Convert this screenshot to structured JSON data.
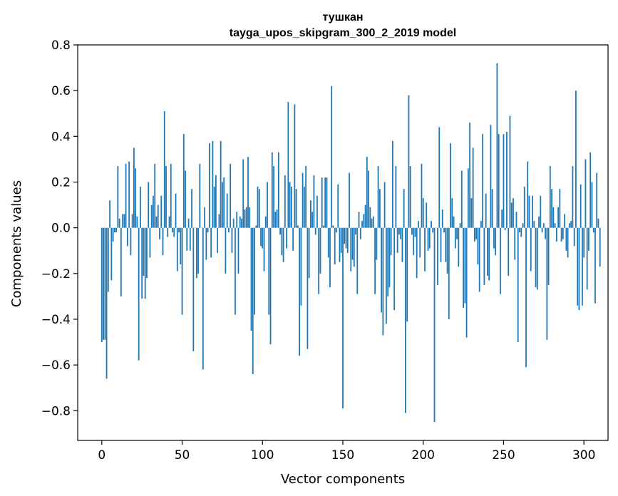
{
  "chart_data": {
    "type": "bar",
    "title_line1": "тушкан",
    "title_line2": "tayga_upos_skipgram_300_2_2019 model",
    "xlabel": "Vector components",
    "ylabel": "Components values",
    "xlim": [
      -15,
      315
    ],
    "ylim": [
      -0.93,
      0.8
    ],
    "xticks": [
      0,
      50,
      100,
      150,
      200,
      250,
      300
    ],
    "xtick_labels": [
      "0",
      "50",
      "100",
      "150",
      "200",
      "250",
      "300"
    ],
    "yticks": [
      0.8,
      0.6,
      0.4,
      0.2,
      0.0,
      -0.2,
      -0.4,
      -0.6,
      -0.8
    ],
    "ytick_labels": [
      "0.8",
      "0.6",
      "0.4",
      "0.2",
      "0.0",
      "−0.2",
      "−0.4",
      "−0.6",
      "−0.8"
    ],
    "bar_color": "#1f77b4",
    "values": [
      -0.5,
      -0.49,
      -0.49,
      -0.66,
      -0.28,
      0.12,
      -0.23,
      -0.06,
      -0.02,
      -0.02,
      0.27,
      0.04,
      -0.3,
      0.06,
      0.06,
      0.28,
      -0.08,
      0.29,
      -0.12,
      0.06,
      0.35,
      0.26,
      0.05,
      -0.58,
      0.18,
      -0.31,
      -0.21,
      -0.31,
      -0.22,
      0.2,
      -0.13,
      0.1,
      0.14,
      0.28,
      0.05,
      0.1,
      -0.05,
      0.14,
      -0.12,
      0.51,
      0.27,
      -0.04,
      0.05,
      0.28,
      -0.02,
      -0.04,
      0.15,
      -0.19,
      -0.02,
      -0.16,
      -0.38,
      0.41,
      0.25,
      -0.1,
      0.04,
      -0.1,
      0.17,
      -0.54,
      0.0,
      -0.22,
      -0.2,
      0.28,
      0.0,
      -0.62,
      0.09,
      -0.14,
      -0.02,
      0.37,
      -0.13,
      0.38,
      0.18,
      0.23,
      -0.11,
      0.06,
      0.38,
      0.2,
      0.22,
      -0.2,
      0.15,
      -0.02,
      0.28,
      -0.11,
      0.04,
      -0.38,
      0.07,
      -0.2,
      0.05,
      0.04,
      0.3,
      0.08,
      0.09,
      0.31,
      0.09,
      -0.45,
      -0.64,
      -0.38,
      0.01,
      0.18,
      0.17,
      -0.08,
      -0.09,
      -0.19,
      0.05,
      0.2,
      -0.38,
      -0.51,
      0.33,
      0.27,
      0.07,
      0.08,
      0.33,
      -0.03,
      -0.12,
      -0.15,
      0.23,
      -0.09,
      0.55,
      0.2,
      0.18,
      -0.1,
      0.54,
      0.17,
      0.01,
      -0.56,
      -0.34,
      0.24,
      0.18,
      0.27,
      -0.53,
      -0.22,
      0.12,
      0.07,
      0.23,
      -0.03,
      0.14,
      -0.29,
      -0.2,
      0.22,
      0.01,
      0.22,
      0.22,
      -0.13,
      -0.26,
      0.62,
      0.01,
      -0.16,
      -0.02,
      0.19,
      -0.15,
      -0.11,
      -0.79,
      -0.07,
      -0.09,
      -0.11,
      0.24,
      -0.19,
      -0.14,
      -0.17,
      -0.03,
      -0.29,
      0.07,
      -0.05,
      0.03,
      0.06,
      0.1,
      0.31,
      0.25,
      0.09,
      0.04,
      0.05,
      -0.29,
      -0.14,
      0.27,
      0.17,
      -0.37,
      -0.47,
      0.2,
      -0.42,
      -0.3,
      -0.26,
      -0.12,
      0.38,
      -0.36,
      0.27,
      -0.11,
      -0.03,
      -0.05,
      -0.15,
      0.17,
      -0.81,
      -0.41,
      0.58,
      0.27,
      -0.03,
      -0.12,
      -0.04,
      -0.22,
      0.03,
      -0.13,
      0.28,
      0.13,
      -0.19,
      0.11,
      -0.1,
      -0.09,
      0.03,
      -0.02,
      -0.85,
      0.0,
      -0.25,
      0.44,
      -0.15,
      0.08,
      -0.02,
      -0.15,
      -0.2,
      -0.4,
      0.37,
      0.13,
      0.05,
      -0.09,
      -0.05,
      -0.17,
      0.02,
      0.25,
      -0.35,
      -0.33,
      -0.48,
      0.26,
      0.46,
      0.13,
      0.35,
      -0.06,
      -0.05,
      -0.16,
      -0.28,
      0.03,
      0.41,
      -0.25,
      0.15,
      -0.21,
      -0.23,
      0.45,
      0.17,
      -0.09,
      -0.12,
      0.72,
      0.41,
      -0.29,
      0.08,
      0.41,
      -0.01,
      0.42,
      -0.21,
      0.49,
      0.11,
      0.13,
      -0.14,
      0.07,
      -0.5,
      -0.02,
      -0.04,
      0.02,
      0.18,
      -0.61,
      0.29,
      0.14,
      -0.19,
      0.14,
      0.03,
      -0.26,
      -0.27,
      0.05,
      0.14,
      -0.02,
      0.02,
      -0.05,
      -0.49,
      -0.25,
      0.27,
      0.17,
      0.09,
      0.02,
      -0.06,
      0.09,
      0.17,
      -0.06,
      -0.05,
      0.06,
      -0.1,
      -0.13,
      0.02,
      0.03,
      0.27,
      -0.08,
      0.6,
      -0.34,
      -0.36,
      0.19,
      -0.34,
      -0.13,
      0.3,
      -0.27,
      -0.1,
      0.33,
      0.2,
      -0.02,
      -0.33,
      0.24,
      0.04,
      -0.17
    ]
  }
}
